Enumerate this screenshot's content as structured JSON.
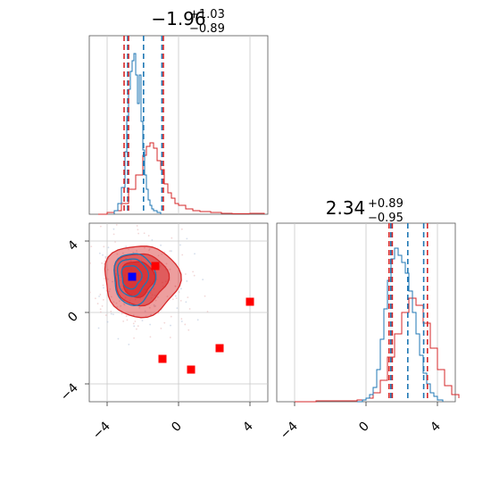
{
  "chart_data": {
    "type": "corner",
    "parameters": [
      {
        "title_main": "−1.96",
        "title_upper": "+1.03",
        "title_lower": "−0.89",
        "range": [
          -5,
          5
        ],
        "ticks": [
          "−4",
          "0",
          "4"
        ],
        "tick_values": [
          -4,
          0,
          4
        ]
      },
      {
        "title_main": "2.34",
        "title_upper": "+0.89",
        "title_lower": "−0.95",
        "range": [
          -5,
          5
        ],
        "ticks": [
          "−4",
          "0",
          "4"
        ],
        "tick_values": [
          -4,
          0,
          4
        ]
      }
    ],
    "colors": {
      "blue": "#1f77b4",
      "red": "#d62728",
      "marker_blue": "#0000ff",
      "marker_red": "#ff0000"
    },
    "grid": true,
    "hist1": {
      "blue_x": [
        -3.6,
        -3.4,
        -3.2,
        -3.0,
        -2.9,
        -2.8,
        -2.7,
        -2.6,
        -2.5,
        -2.4,
        -2.3,
        -2.2,
        -2.1,
        -2.0,
        -1.9,
        -1.8,
        -1.7,
        -1.6,
        -1.5,
        -1.4,
        -1.2,
        -1.0
      ],
      "blue_y": [
        0.02,
        0.06,
        0.15,
        0.35,
        0.55,
        0.7,
        0.8,
        0.86,
        0.9,
        0.78,
        0.62,
        0.78,
        0.52,
        0.36,
        0.22,
        0.14,
        0.08,
        0.05,
        0.03,
        0.02,
        0.01,
        0.0
      ],
      "red_x": [
        -4.5,
        -4.0,
        -3.6,
        -3.2,
        -2.8,
        -2.4,
        -2.0,
        -1.8,
        -1.6,
        -1.4,
        -1.2,
        -1.0,
        -0.8,
        -0.6,
        -0.4,
        -0.2,
        0.0,
        0.4,
        0.8,
        1.2,
        1.8,
        2.4,
        3.0,
        4.0,
        4.8
      ],
      "red_y": [
        0.0,
        0.01,
        0.02,
        0.06,
        0.14,
        0.22,
        0.33,
        0.38,
        0.4,
        0.37,
        0.3,
        0.25,
        0.17,
        0.12,
        0.09,
        0.06,
        0.05,
        0.03,
        0.02,
        0.015,
        0.01,
        0.005,
        0.003,
        0.005,
        0.0
      ],
      "blue_quantiles": [
        -2.85,
        -1.96,
        -0.93
      ],
      "red_quantiles": [
        -3.05,
        -2.8,
        -0.85
      ]
    },
    "hist2": {
      "blue_x": [
        -0.5,
        -0.2,
        0.0,
        0.2,
        0.4,
        0.6,
        0.8,
        1.0,
        1.2,
        1.4,
        1.6,
        1.8,
        2.0,
        2.2,
        2.4,
        2.6,
        2.8,
        3.0,
        3.2,
        3.4,
        3.6,
        3.8,
        4.0,
        4.3
      ],
      "blue_y": [
        0.0,
        0.01,
        0.02,
        0.04,
        0.08,
        0.18,
        0.35,
        0.52,
        0.68,
        0.8,
        0.86,
        0.82,
        0.78,
        0.72,
        0.62,
        0.5,
        0.38,
        0.26,
        0.16,
        0.1,
        0.05,
        0.03,
        0.01,
        0.0
      ],
      "red_x": [
        -4.0,
        -2.8,
        -1.5,
        -0.5,
        0.0,
        0.4,
        0.8,
        1.2,
        1.6,
        2.0,
        2.4,
        2.8,
        3.2,
        3.6,
        4.0,
        4.4,
        4.8,
        5.2
      ],
      "red_y": [
        0.0,
        0.005,
        0.005,
        0.01,
        0.02,
        0.05,
        0.12,
        0.25,
        0.38,
        0.5,
        0.58,
        0.54,
        0.44,
        0.3,
        0.18,
        0.09,
        0.04,
        0.02
      ],
      "blue_quantiles": [
        1.39,
        2.34,
        3.23
      ],
      "red_quantiles": [
        1.29,
        1.47,
        3.44
      ]
    },
    "scatter2d": {
      "blue_center": [
        -2.3,
        1.9
      ],
      "red_center": [
        -2.2,
        1.8
      ],
      "blue_marker": [
        -2.6,
        2.0
      ],
      "red_markers": [
        [
          -1.3,
          2.6
        ],
        [
          4.0,
          0.6
        ],
        [
          -0.9,
          -2.6
        ],
        [
          0.7,
          -3.2
        ],
        [
          2.3,
          -2.0
        ]
      ]
    }
  }
}
